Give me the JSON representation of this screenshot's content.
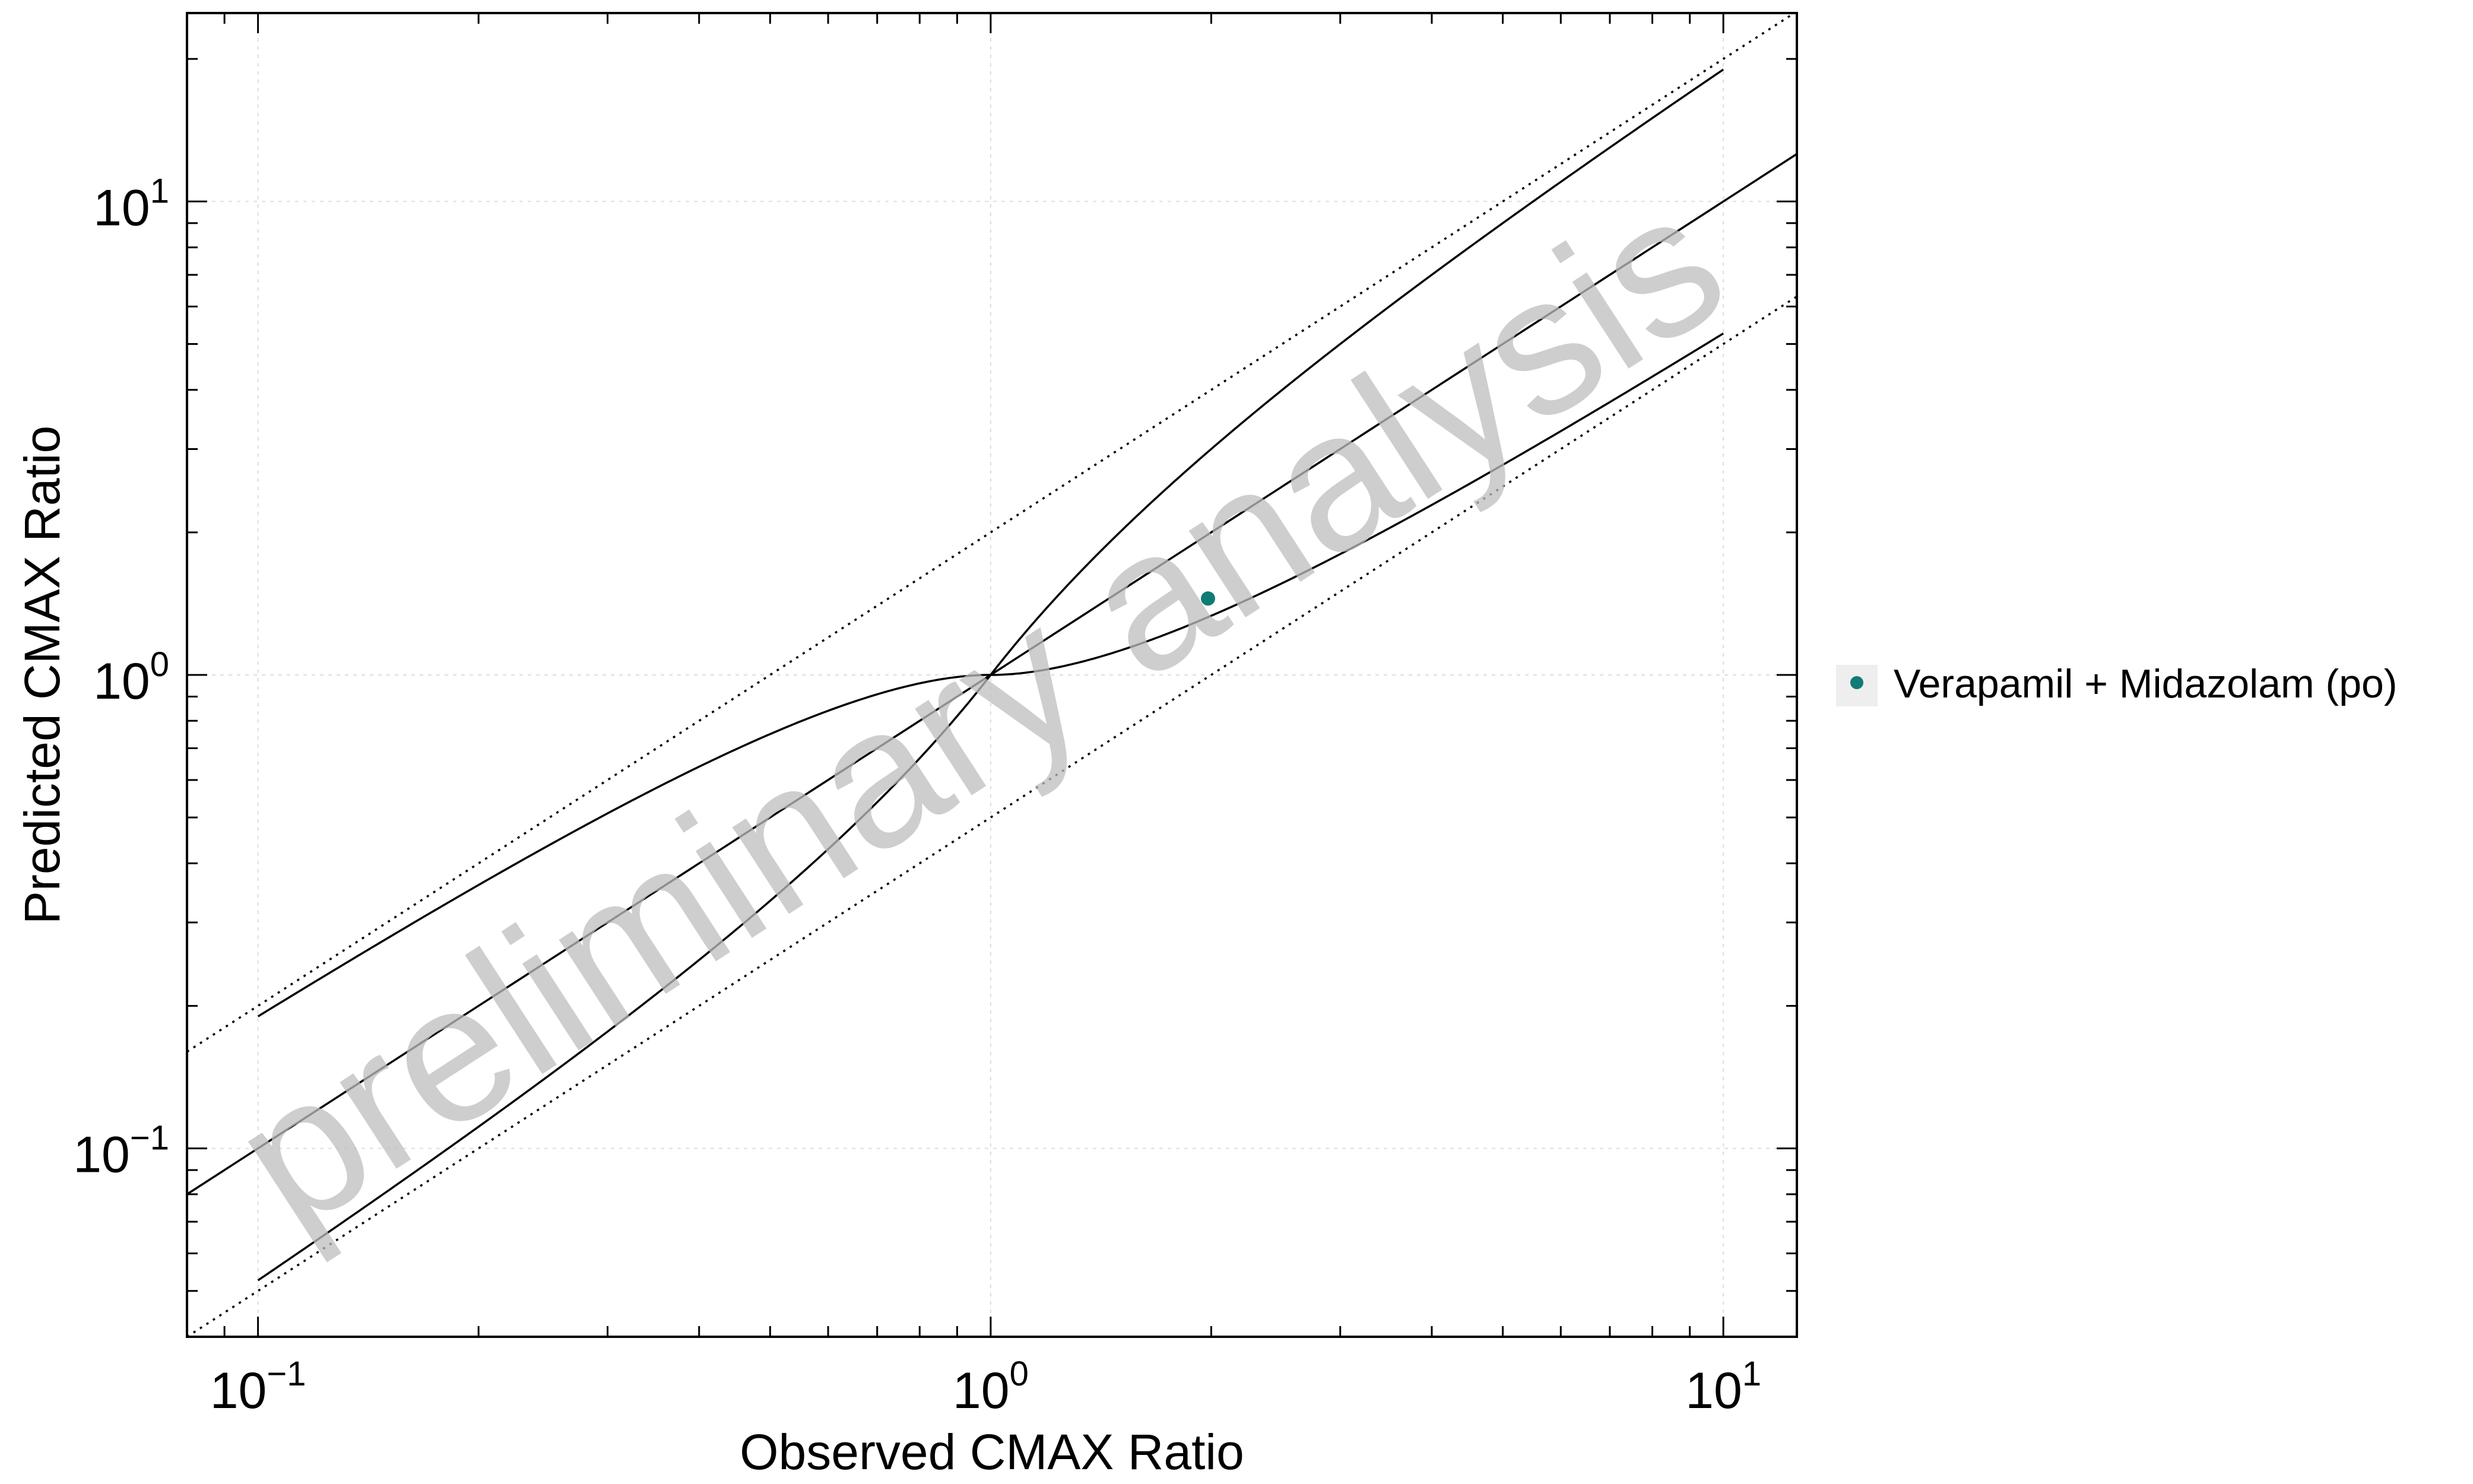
{
  "chart_data": {
    "type": "scatter",
    "title": "",
    "xlabel": "Observed CMAX Ratio",
    "ylabel": "Predicted CMAX Ratio",
    "xscale": "log",
    "yscale": "log",
    "xlim": [
      0.08,
      12.6
    ],
    "ylim": [
      0.04,
      25
    ],
    "grid": true,
    "x_ticks": [
      {
        "base": "10",
        "exp": "−1",
        "value": 0.1
      },
      {
        "base": "10",
        "exp": "0",
        "value": 1
      },
      {
        "base": "10",
        "exp": "1",
        "value": 10
      }
    ],
    "y_ticks": [
      {
        "base": "10",
        "exp": "−1",
        "value": 0.1
      },
      {
        "base": "10",
        "exp": "0",
        "value": 1
      },
      {
        "base": "10",
        "exp": "1",
        "value": 10
      }
    ],
    "reference_lines": [
      {
        "kind": "identity",
        "style": "solid"
      },
      {
        "kind": "guest-limit-upper",
        "style": "solid"
      },
      {
        "kind": "guest-limit-lower",
        "style": "solid"
      },
      {
        "kind": "2-fold-upper",
        "style": "dotted"
      },
      {
        "kind": "2-fold-lower",
        "style": "dotted"
      }
    ],
    "series": [
      {
        "name": "Verapamil + Midazolam (po)",
        "color": "#117b76",
        "points": [
          {
            "x": 1.98,
            "y": 1.45
          }
        ]
      }
    ],
    "legend": {
      "placement": "right"
    },
    "watermark": "preliminary analysis"
  }
}
